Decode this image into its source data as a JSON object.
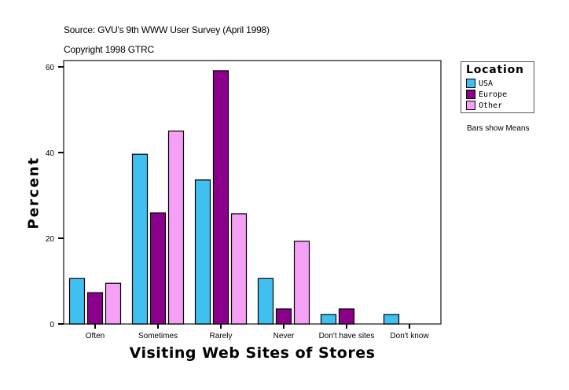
{
  "header": {
    "source": "Source: GVU's 9th WWW User Survey (April 1998)",
    "copyright": "Copyright 1998 GTRC"
  },
  "legend": {
    "title": "Location",
    "items": [
      {
        "label": "USA",
        "color": "#40C0F0"
      },
      {
        "label": "Europe",
        "color": "#8B008B"
      },
      {
        "label": "Other",
        "color": "#F4A0F4"
      }
    ]
  },
  "note": "Bars show Means",
  "chart_data": {
    "type": "bar",
    "title": "Source: GVU's 9th WWW User Survey (April 1998)",
    "subtitle": "Copyright 1998 GTRC",
    "xlabel": "Visiting Web Sites of Stores",
    "ylabel": "Percent",
    "categories": [
      "Often",
      "Sometimes",
      "Rarely",
      "Never",
      "Don't have sites",
      "Don't know"
    ],
    "series": [
      {
        "name": "USA",
        "color": "#40C0F0",
        "values": [
          10.6,
          39.6,
          33.6,
          10.6,
          2.2,
          2.2
        ]
      },
      {
        "name": "Europe",
        "color": "#8B008B",
        "values": [
          7.3,
          25.9,
          59.1,
          3.5,
          3.5,
          0
        ]
      },
      {
        "name": "Other",
        "color": "#F4A0F4",
        "values": [
          9.5,
          45.0,
          25.7,
          19.3,
          0,
          0
        ]
      }
    ],
    "yticks": [
      0,
      20,
      40,
      60
    ],
    "ylim": [
      0,
      61.5
    ],
    "grid": false,
    "legend_position": "right",
    "annotation": "Bars show Means"
  }
}
